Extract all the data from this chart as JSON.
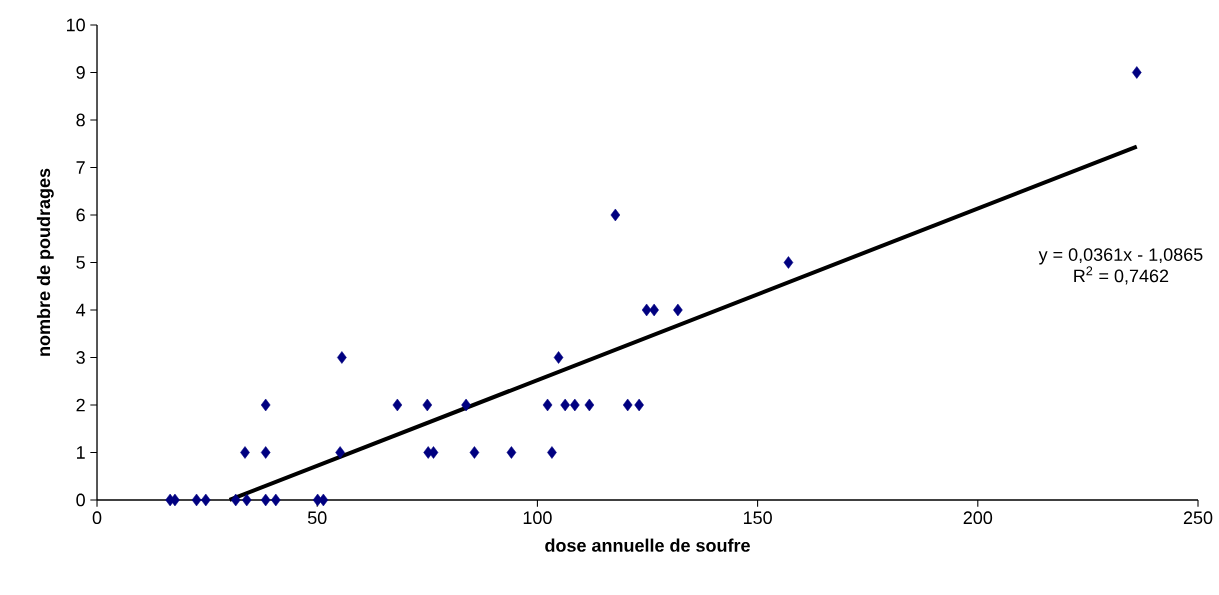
{
  "chart_data": {
    "type": "scatter",
    "xlabel": "dose annuelle de soufre",
    "ylabel": "nombre de poudrages",
    "xlim": [
      0,
      250
    ],
    "xticks": [
      0,
      50,
      100,
      150,
      200,
      250
    ],
    "ylim": [
      0,
      10
    ],
    "yticks": [
      0,
      1,
      2,
      3,
      4,
      5,
      6,
      7,
      8,
      9,
      10
    ],
    "marker": "diamond",
    "series": [
      {
        "color": "#000080",
        "x": [
          16.6,
          17.7,
          22.6,
          24.7,
          31.5,
          34.0,
          38.3,
          40.6,
          50.1,
          51.4,
          33.6,
          38.3,
          55.2,
          75.2,
          76.4,
          85.7,
          94.1,
          103.3,
          38.3,
          68.2,
          75.0,
          83.8,
          102.3,
          106.3,
          108.5,
          111.8,
          120.5,
          123.1,
          55.6,
          104.8,
          124.8,
          126.5,
          131.9,
          157.0,
          117.7,
          236.1
        ],
        "values": [
          0,
          0,
          0,
          0,
          0,
          0,
          0,
          0,
          0,
          0,
          1,
          1,
          1,
          1,
          1,
          1,
          1,
          1,
          2,
          2,
          2,
          2,
          2,
          2,
          2,
          2,
          2,
          2,
          3,
          3,
          4,
          4,
          4,
          5,
          6,
          9
        ]
      },
      {
        "type": "line",
        "color": "#000000",
        "marker": "none",
        "x": [
          30.1,
          236.1
        ],
        "values": [
          0,
          7.44
        ]
      }
    ],
    "annotations": [
      "y = 0,0361x - 1,0865",
      "R$^{2}$ = 0,7462"
    ]
  }
}
